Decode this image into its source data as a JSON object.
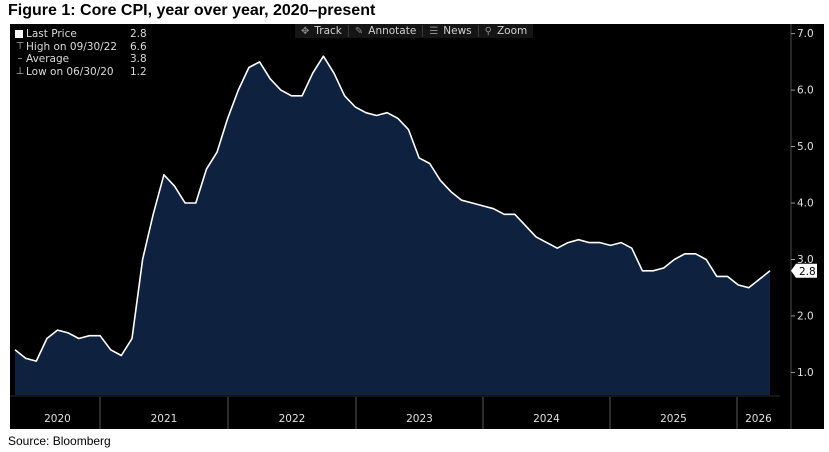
{
  "figure_title": "Figure 1: Core CPI, year over year, 2020–present",
  "source": "Source: Bloomberg",
  "toolbar": {
    "track": "Track",
    "annotate": "Annotate",
    "news": "News",
    "zoom": "Zoom"
  },
  "legend": {
    "last_price_label": "Last Price",
    "last_price_value": "2.8",
    "high_label": "High on 09/30/22",
    "high_value": "6.6",
    "average_label": "Average",
    "average_value": "3.8",
    "low_label": "Low on 06/30/20",
    "low_value": "1.2"
  },
  "colors": {
    "background": "#000000",
    "area_fill": "#0e2240",
    "line": "#ffffff",
    "axis_text": "#e0e0e0"
  },
  "chart_data": {
    "type": "area",
    "x_labels": [
      "2020",
      "2021",
      "2022",
      "2023",
      "2024",
      "2025",
      "2026"
    ],
    "y_ticks": [
      "1.0",
      "2.0",
      "3.0",
      "4.0",
      "5.0",
      "6.0",
      "7.0"
    ],
    "ylim": [
      0.6,
      7.1
    ],
    "last_value_label": "2.8",
    "grid": false,
    "series": [
      {
        "values": [
          1.4,
          1.25,
          1.2,
          1.6,
          1.75,
          1.7,
          1.6,
          1.65,
          1.65,
          1.4,
          1.3,
          1.6,
          3.0,
          3.8,
          4.5,
          4.3,
          4.0,
          4.0,
          4.6,
          4.9,
          5.5,
          6.0,
          6.4,
          6.5,
          6.2,
          6.0,
          5.9,
          5.9,
          6.3,
          6.6,
          6.3,
          5.9,
          5.7,
          5.6,
          5.55,
          5.6,
          5.5,
          5.3,
          4.8,
          4.7,
          4.4,
          4.2,
          4.05,
          4.0,
          3.95,
          3.9,
          3.8,
          3.8,
          3.6,
          3.4,
          3.3,
          3.2,
          3.3,
          3.35,
          3.3,
          3.3,
          3.25,
          3.3,
          3.2,
          2.8,
          2.8,
          2.85,
          3.0,
          3.1,
          3.1,
          3.0,
          2.7,
          2.7,
          2.55,
          2.5,
          2.65,
          2.8
        ]
      }
    ]
  }
}
